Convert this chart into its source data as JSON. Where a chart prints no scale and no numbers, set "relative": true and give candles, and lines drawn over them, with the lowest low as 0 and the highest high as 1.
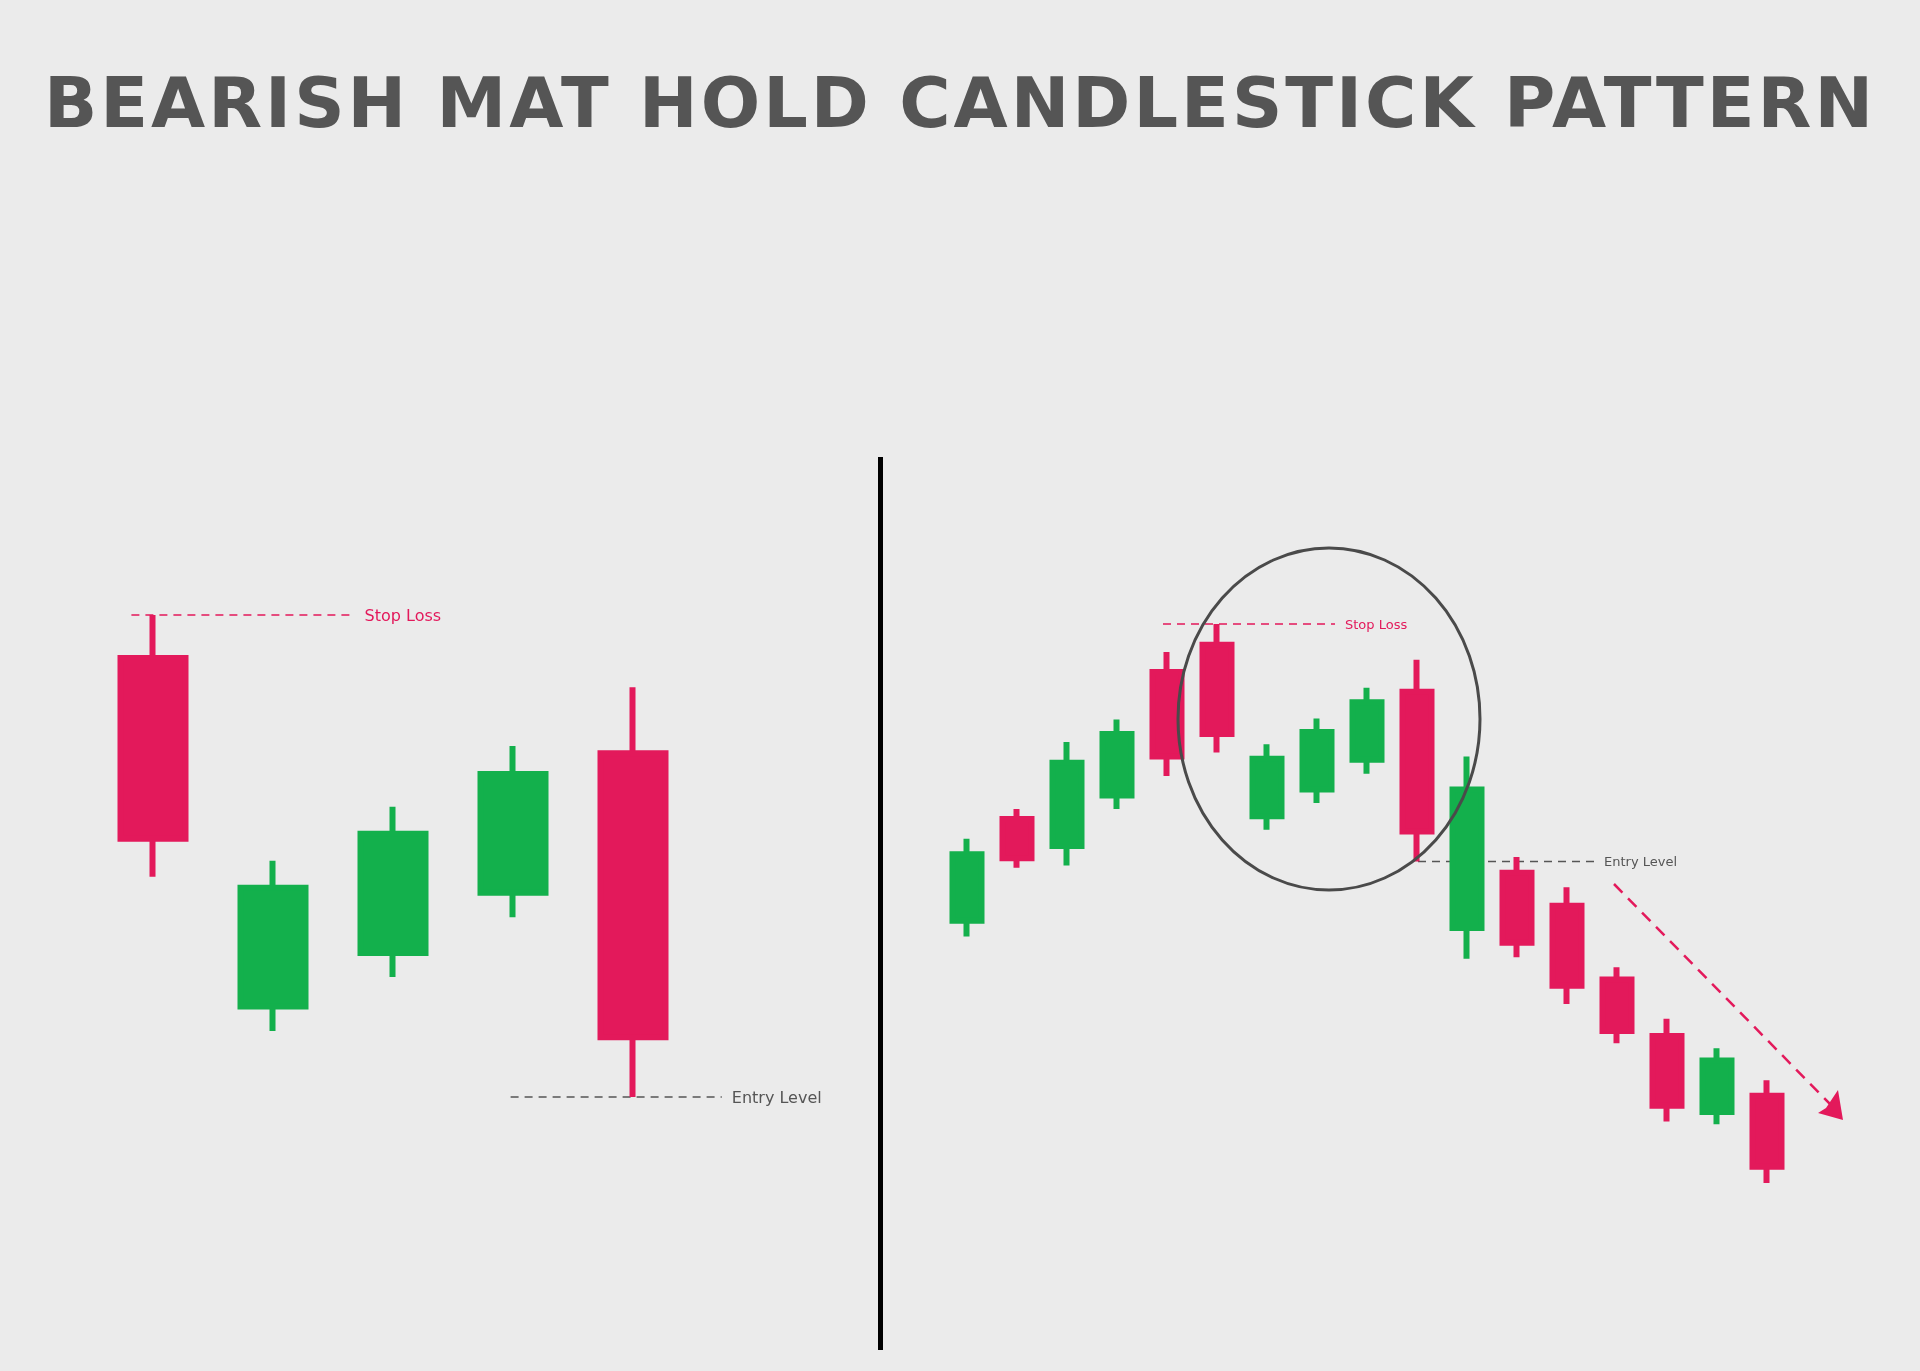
{
  "chart_data": [
    {
      "type": "candlestick",
      "title": "BEARISH MAT HOLD CANDLESTICK PATTERN",
      "relative": true,
      "categories": [
        null,
        null,
        null,
        null,
        null
      ],
      "ohlc": [
        [
          0.911,
          1,
          0.457,
          0.536
        ],
        [
          0.188,
          0.49,
          0.137,
          0.434
        ],
        [
          0.299,
          0.602,
          0.249,
          0.546
        ],
        [
          0.424,
          0.728,
          0.373,
          0.67
        ],
        [
          0.713,
          0.85,
          0,
          0.124
        ]
      ],
      "colors": [
        "#e3195b",
        "#13b04c",
        "#13b04c",
        "#13b04c",
        "#e3195b"
      ],
      "ref_lines": [
        {
          "axis": "y",
          "value": 1,
          "label": "Stop Loss",
          "color": "#e3195b",
          "line_style": "dashed"
        },
        {
          "axis": "y",
          "value": 0,
          "label": "Entry Level",
          "color": "#555555",
          "line_style": "dashed"
        }
      ]
    },
    {
      "type": "candlestick",
      "relative": true,
      "categories": [
        null,
        null,
        null,
        null,
        null,
        null,
        null,
        null,
        null,
        null,
        null,
        null,
        null,
        null,
        null,
        null,
        null
      ],
      "ohlc": [
        [
          0.469,
          0.616,
          0.441,
          0.588
        ],
        [
          0.651,
          0.669,
          0.564,
          0.581
        ],
        [
          0.603,
          0.789,
          0.568,
          0.752
        ],
        [
          0.693,
          0.829,
          0.669,
          0.803
        ],
        [
          0.914,
          0.95,
          0.728,
          0.763
        ],
        [
          0.963,
          1,
          0.77,
          0.803
        ],
        [
          0.656,
          0.785,
          0.632,
          0.759
        ],
        [
          0.704,
          0.831,
          0.68,
          0.807
        ],
        [
          0.757,
          0.886,
          0.732,
          0.86
        ],
        [
          0.879,
          0.936,
          0.575,
          0.629
        ],
        [
          0.456,
          0.763,
          0.401,
          0.704
        ],
        [
          0.555,
          0.583,
          0.404,
          0.43
        ],
        [
          0.496,
          0.529,
          0.32,
          0.353
        ],
        [
          0.364,
          0.386,
          0.25,
          0.272
        ],
        [
          0.263,
          0.294,
          0.11,
          0.138
        ],
        [
          0.127,
          0.241,
          0.105,
          0.219
        ],
        [
          0.156,
          0.184,
          0,
          0.029
        ]
      ],
      "colors": [
        "#13b04c",
        "#e3195b",
        "#13b04c",
        "#13b04c",
        "#e3195b",
        "#e3195b",
        "#13b04c",
        "#13b04c",
        "#13b04c",
        "#e3195b",
        "#13b04c",
        "#e3195b",
        "#e3195b",
        "#e3195b",
        "#e3195b",
        "#13b04c",
        "#e3195b"
      ],
      "ref_lines": [
        {
          "axis": "y",
          "value": 1,
          "label": "Stop Loss",
          "color": "#e3195b",
          "line_style": "dashed"
        },
        {
          "axis": "y",
          "value": 0.575,
          "label": "Entry Level",
          "color": "#555555",
          "line_style": "dashed"
        }
      ]
    }
  ]
}
